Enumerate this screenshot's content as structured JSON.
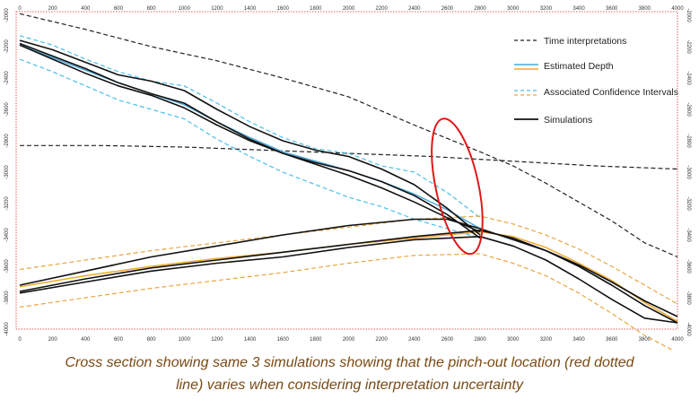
{
  "chart_data": {
    "type": "line",
    "title": "",
    "xlabel": "",
    "ylabel": "",
    "xlim": [
      0,
      4000
    ],
    "ylim": [
      -2000,
      -4000
    ],
    "x_ticks": [
      0,
      200,
      400,
      600,
      800,
      1000,
      1200,
      1400,
      1600,
      1800,
      2000,
      2200,
      2400,
      2600,
      2800,
      3000,
      3200,
      3400,
      3600,
      3800,
      4000
    ],
    "y_ticks": [
      -2000,
      -2200,
      -2400,
      -2600,
      -2800,
      -3000,
      -3200,
      -3400,
      -3600,
      -3800,
      -4000
    ],
    "y_tick_labels": [
      "-2000",
      "-2200",
      "-2400",
      "-2600",
      "-2800",
      "-3000",
      "-3200",
      "-3400",
      "-3600",
      "-3800",
      "-4000"
    ],
    "grid": false,
    "legend_position": "top-right",
    "legend": [
      {
        "label": "Time interpretations",
        "style": "dashed",
        "color": "#222222"
      },
      {
        "label": "Estimated Depth",
        "style": "solid",
        "colors": [
          "#49a9dd",
          "#f0a92a"
        ]
      },
      {
        "label": "Associated Confidence Intervals",
        "style": "dashed",
        "colors": [
          "#49c0e8",
          "#e8a640"
        ]
      },
      {
        "label": "Simulations",
        "style": "solid",
        "color": "#111111"
      }
    ],
    "series": [
      {
        "kind": "time_interpretation",
        "style": "dashed",
        "color": "#222222",
        "x": [
          0,
          400,
          800,
          1200,
          1600,
          2000,
          2400,
          2800,
          3000,
          3200,
          3400,
          3600,
          3800,
          4000
        ],
        "y": [
          -1990,
          -2090,
          -2200,
          -2290,
          -2400,
          -2520,
          -2700,
          -2870,
          -2960,
          -3070,
          -3190,
          -3310,
          -3450,
          -3540
        ]
      },
      {
        "kind": "time_interpretation",
        "style": "dashed",
        "color": "#222222",
        "x": [
          0,
          500,
          1000,
          1500,
          2000,
          2500,
          3000,
          3500,
          4000
        ],
        "y": [
          -2830,
          -2830,
          -2840,
          -2860,
          -2880,
          -2900,
          -2930,
          -2960,
          -2980
        ]
      },
      {
        "kind": "confidence_interval",
        "style": "dashed",
        "color": "#49c0e8",
        "x": [
          0,
          200,
          400,
          600,
          800,
          1000,
          1200,
          1400,
          1600,
          1800,
          2000,
          2200,
          2400,
          2600,
          2800
        ],
        "y": [
          -2130,
          -2190,
          -2280,
          -2360,
          -2420,
          -2450,
          -2560,
          -2680,
          -2780,
          -2850,
          -2880,
          -2960,
          -3000,
          -3130,
          -3290
        ]
      },
      {
        "kind": "confidence_interval",
        "style": "dashed",
        "color": "#49c0e8",
        "x": [
          0,
          200,
          400,
          600,
          800,
          1000,
          1200,
          1400,
          1600,
          1800,
          2000,
          2200,
          2400,
          2600,
          2800
        ],
        "y": [
          -2280,
          -2360,
          -2450,
          -2540,
          -2600,
          -2660,
          -2790,
          -2900,
          -3000,
          -3080,
          -3160,
          -3220,
          -3300,
          -3360,
          -3420
        ]
      },
      {
        "kind": "estimated_depth",
        "style": "solid",
        "color": "#49a9dd",
        "x": [
          0,
          200,
          400,
          600,
          800,
          1000,
          1200,
          1400,
          1600,
          1800,
          2000,
          2200,
          2400,
          2600,
          2800
        ],
        "y": [
          -2190,
          -2270,
          -2350,
          -2430,
          -2500,
          -2570,
          -2680,
          -2780,
          -2870,
          -2930,
          -2990,
          -3060,
          -3140,
          -3240,
          -3360
        ]
      },
      {
        "kind": "estimated_depth",
        "style": "solid",
        "color": "#f0a92a",
        "x": [
          0,
          400,
          800,
          1200,
          1600,
          2000,
          2400,
          2800,
          3000,
          3200,
          3400,
          3600,
          3800,
          4000
        ],
        "y": [
          -3730,
          -3660,
          -3600,
          -3550,
          -3510,
          -3460,
          -3420,
          -3380,
          -3410,
          -3480,
          -3580,
          -3690,
          -3830,
          -3950
        ]
      },
      {
        "kind": "confidence_interval",
        "style": "dashed",
        "color": "#e8a640",
        "x": [
          0,
          400,
          800,
          1200,
          1600,
          2000,
          2400,
          2800,
          3000,
          3200,
          3400,
          3600,
          3800,
          4000
        ],
        "y": [
          -3620,
          -3560,
          -3500,
          -3450,
          -3400,
          -3350,
          -3300,
          -3280,
          -3330,
          -3400,
          -3490,
          -3600,
          -3720,
          -3840
        ]
      },
      {
        "kind": "confidence_interval",
        "style": "dashed",
        "color": "#e8a640",
        "x": [
          0,
          400,
          800,
          1200,
          1600,
          2000,
          2400,
          2800,
          3000,
          3200,
          3400,
          3600,
          3800,
          4000
        ],
        "y": [
          -3860,
          -3800,
          -3740,
          -3690,
          -3640,
          -3580,
          -3530,
          -3520,
          -3580,
          -3660,
          -3770,
          -3900,
          -4040,
          -4150
        ]
      },
      {
        "kind": "simulation",
        "style": "solid",
        "color": "#111111",
        "x": [
          0,
          200,
          400,
          600,
          800,
          1000,
          1200,
          1400,
          1600,
          1800,
          2000,
          2200,
          2400,
          2600,
          2800
        ],
        "y": [
          -2160,
          -2220,
          -2300,
          -2380,
          -2420,
          -2480,
          -2600,
          -2710,
          -2800,
          -2860,
          -2900,
          -2980,
          -3080,
          -3230,
          -3400
        ]
      },
      {
        "kind": "simulation",
        "style": "solid",
        "color": "#111111",
        "x": [
          0,
          200,
          400,
          600,
          800,
          1000,
          1200,
          1400,
          1600,
          1800,
          2000,
          2200,
          2400,
          2600,
          2800
        ],
        "y": [
          -2180,
          -2260,
          -2340,
          -2430,
          -2500,
          -2560,
          -2680,
          -2790,
          -2880,
          -2950,
          -3020,
          -3100,
          -3190,
          -3290,
          -3380
        ]
      },
      {
        "kind": "simulation",
        "style": "solid",
        "color": "#111111",
        "x": [
          0,
          200,
          400,
          600,
          800,
          1000,
          1200,
          1400,
          1600,
          1800,
          2000,
          2200,
          2400,
          2600,
          2800
        ],
        "y": [
          -2190,
          -2280,
          -2370,
          -2450,
          -2510,
          -2590,
          -2700,
          -2800,
          -2880,
          -2940,
          -2990,
          -3060,
          -3150,
          -3270,
          -3420
        ]
      },
      {
        "kind": "simulation",
        "style": "solid",
        "color": "#111111",
        "x": [
          0,
          400,
          800,
          1200,
          1600,
          2000,
          2400,
          2600,
          2800,
          3000,
          3200,
          3400,
          3600,
          3800,
          4000
        ],
        "y": [
          -3720,
          -3630,
          -3540,
          -3470,
          -3400,
          -3340,
          -3300,
          -3300,
          -3360,
          -3430,
          -3500,
          -3590,
          -3700,
          -3820,
          -3920
        ]
      },
      {
        "kind": "simulation",
        "style": "solid",
        "color": "#111111",
        "x": [
          0,
          400,
          800,
          1200,
          1600,
          2000,
          2400,
          2800,
          3000,
          3200,
          3400,
          3600,
          3800,
          4000
        ],
        "y": [
          -3760,
          -3680,
          -3610,
          -3560,
          -3510,
          -3460,
          -3410,
          -3370,
          -3420,
          -3500,
          -3600,
          -3720,
          -3850,
          -3960
        ]
      },
      {
        "kind": "simulation",
        "style": "solid",
        "color": "#111111",
        "x": [
          0,
          400,
          800,
          1200,
          1600,
          2000,
          2400,
          2800,
          3000,
          3200,
          3400,
          3600,
          3800,
          4000
        ],
        "y": [
          -3770,
          -3700,
          -3630,
          -3580,
          -3540,
          -3480,
          -3430,
          -3410,
          -3470,
          -3560,
          -3680,
          -3810,
          -3930,
          -3960
        ]
      }
    ],
    "annotations": [
      {
        "type": "ellipse",
        "color": "#e01818",
        "x_center": 2660,
        "y_center": -3090,
        "x_radius": 130,
        "y_radius": 440,
        "rotation_deg": -12
      }
    ],
    "caption_lines": [
      "Cross section showing same 3 simulations showing that the pinch-out location (red dotted",
      "line) varies when considering interpretation uncertainty"
    ]
  }
}
